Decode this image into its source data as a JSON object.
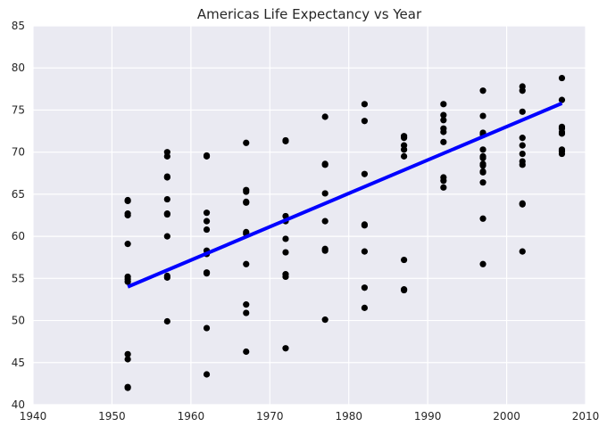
{
  "chart_data": {
    "type": "scatter",
    "title": "Americas Life Expectancy vs Year",
    "xlabel": "",
    "ylabel": "",
    "xlim": [
      1940,
      2010
    ],
    "ylim": [
      40,
      85
    ],
    "grid": true,
    "x_ticks": [
      1940,
      1950,
      1960,
      1970,
      1980,
      1990,
      2000,
      2010
    ],
    "y_ticks": [
      40,
      45,
      50,
      55,
      60,
      65,
      70,
      75,
      80,
      85
    ],
    "x_tick_labels": [
      "1940",
      "1950",
      "1960",
      "1970",
      "1980",
      "1990",
      "2000",
      "2010"
    ],
    "y_tick_labels": [
      "40",
      "45",
      "50",
      "55",
      "60",
      "65",
      "70",
      "75",
      "80",
      "85"
    ],
    "colors": {
      "points": "#000000",
      "fit_line": "#0000ff",
      "plot_bg": "#eaeaf2",
      "grid": "#ffffff"
    },
    "points": [
      {
        "x": 1952,
        "y": 64.3
      },
      {
        "x": 1952,
        "y": 64.2
      },
      {
        "x": 1952,
        "y": 62.7
      },
      {
        "x": 1952,
        "y": 62.5
      },
      {
        "x": 1952,
        "y": 59.1
      },
      {
        "x": 1952,
        "y": 55.2
      },
      {
        "x": 1952,
        "y": 54.9
      },
      {
        "x": 1952,
        "y": 54.6
      },
      {
        "x": 1952,
        "y": 46.0
      },
      {
        "x": 1952,
        "y": 45.4
      },
      {
        "x": 1952,
        "y": 42.1
      },
      {
        "x": 1952,
        "y": 42.0
      },
      {
        "x": 1957,
        "y": 70.0
      },
      {
        "x": 1957,
        "y": 69.5
      },
      {
        "x": 1957,
        "y": 67.1
      },
      {
        "x": 1957,
        "y": 67.0
      },
      {
        "x": 1957,
        "y": 64.4
      },
      {
        "x": 1957,
        "y": 62.7
      },
      {
        "x": 1957,
        "y": 62.6
      },
      {
        "x": 1957,
        "y": 60.0
      },
      {
        "x": 1957,
        "y": 55.3
      },
      {
        "x": 1957,
        "y": 55.1
      },
      {
        "x": 1957,
        "y": 49.9
      },
      {
        "x": 1962,
        "y": 69.6
      },
      {
        "x": 1962,
        "y": 69.5
      },
      {
        "x": 1962,
        "y": 62.8
      },
      {
        "x": 1962,
        "y": 61.8
      },
      {
        "x": 1962,
        "y": 60.8
      },
      {
        "x": 1962,
        "y": 58.3
      },
      {
        "x": 1962,
        "y": 57.9
      },
      {
        "x": 1962,
        "y": 55.7
      },
      {
        "x": 1962,
        "y": 55.6
      },
      {
        "x": 1962,
        "y": 49.1
      },
      {
        "x": 1962,
        "y": 43.6
      },
      {
        "x": 1967,
        "y": 71.1
      },
      {
        "x": 1967,
        "y": 65.5
      },
      {
        "x": 1967,
        "y": 65.3
      },
      {
        "x": 1967,
        "y": 64.1
      },
      {
        "x": 1967,
        "y": 64.0
      },
      {
        "x": 1967,
        "y": 60.5
      },
      {
        "x": 1967,
        "y": 60.3
      },
      {
        "x": 1967,
        "y": 56.7
      },
      {
        "x": 1967,
        "y": 51.9
      },
      {
        "x": 1967,
        "y": 50.9
      },
      {
        "x": 1967,
        "y": 46.3
      },
      {
        "x": 1972,
        "y": 71.4
      },
      {
        "x": 1972,
        "y": 71.3
      },
      {
        "x": 1972,
        "y": 62.4
      },
      {
        "x": 1972,
        "y": 61.8
      },
      {
        "x": 1972,
        "y": 59.7
      },
      {
        "x": 1972,
        "y": 58.1
      },
      {
        "x": 1972,
        "y": 55.5
      },
      {
        "x": 1972,
        "y": 55.2
      },
      {
        "x": 1972,
        "y": 46.7
      },
      {
        "x": 1977,
        "y": 74.2
      },
      {
        "x": 1977,
        "y": 68.6
      },
      {
        "x": 1977,
        "y": 68.5
      },
      {
        "x": 1977,
        "y": 65.1
      },
      {
        "x": 1977,
        "y": 61.8
      },
      {
        "x": 1977,
        "y": 58.5
      },
      {
        "x": 1977,
        "y": 58.3
      },
      {
        "x": 1977,
        "y": 50.1
      },
      {
        "x": 1982,
        "y": 75.7
      },
      {
        "x": 1982,
        "y": 73.7
      },
      {
        "x": 1982,
        "y": 67.4
      },
      {
        "x": 1982,
        "y": 61.4
      },
      {
        "x": 1982,
        "y": 61.3
      },
      {
        "x": 1982,
        "y": 58.2
      },
      {
        "x": 1982,
        "y": 53.9
      },
      {
        "x": 1982,
        "y": 51.5
      },
      {
        "x": 1987,
        "y": 71.9
      },
      {
        "x": 1987,
        "y": 71.7
      },
      {
        "x": 1987,
        "y": 70.8
      },
      {
        "x": 1987,
        "y": 70.3
      },
      {
        "x": 1987,
        "y": 69.5
      },
      {
        "x": 1987,
        "y": 57.2
      },
      {
        "x": 1987,
        "y": 53.7
      },
      {
        "x": 1987,
        "y": 53.6
      },
      {
        "x": 1992,
        "y": 75.7
      },
      {
        "x": 1992,
        "y": 74.4
      },
      {
        "x": 1992,
        "y": 73.8
      },
      {
        "x": 1992,
        "y": 72.8
      },
      {
        "x": 1992,
        "y": 72.4
      },
      {
        "x": 1992,
        "y": 71.2
      },
      {
        "x": 1992,
        "y": 67.0
      },
      {
        "x": 1992,
        "y": 66.6
      },
      {
        "x": 1992,
        "y": 65.8
      },
      {
        "x": 1997,
        "y": 77.3
      },
      {
        "x": 1997,
        "y": 74.3
      },
      {
        "x": 1997,
        "y": 72.3
      },
      {
        "x": 1997,
        "y": 72.1
      },
      {
        "x": 1997,
        "y": 70.3
      },
      {
        "x": 1997,
        "y": 69.5
      },
      {
        "x": 1997,
        "y": 69.3
      },
      {
        "x": 1997,
        "y": 68.6
      },
      {
        "x": 1997,
        "y": 68.4
      },
      {
        "x": 1997,
        "y": 67.7
      },
      {
        "x": 1997,
        "y": 67.6
      },
      {
        "x": 1997,
        "y": 66.4
      },
      {
        "x": 1997,
        "y": 62.1
      },
      {
        "x": 1997,
        "y": 56.7
      },
      {
        "x": 2002,
        "y": 77.8
      },
      {
        "x": 2002,
        "y": 77.3
      },
      {
        "x": 2002,
        "y": 74.8
      },
      {
        "x": 2002,
        "y": 71.7
      },
      {
        "x": 2002,
        "y": 70.8
      },
      {
        "x": 2002,
        "y": 69.8
      },
      {
        "x": 2002,
        "y": 68.9
      },
      {
        "x": 2002,
        "y": 68.5
      },
      {
        "x": 2002,
        "y": 63.9
      },
      {
        "x": 2002,
        "y": 63.8
      },
      {
        "x": 2002,
        "y": 58.2
      },
      {
        "x": 2007,
        "y": 78.8
      },
      {
        "x": 2007,
        "y": 76.2
      },
      {
        "x": 2007,
        "y": 73.0
      },
      {
        "x": 2007,
        "y": 72.8
      },
      {
        "x": 2007,
        "y": 72.4
      },
      {
        "x": 2007,
        "y": 72.2
      },
      {
        "x": 2007,
        "y": 70.3
      },
      {
        "x": 2007,
        "y": 70.1
      },
      {
        "x": 2007,
        "y": 69.8
      }
    ],
    "fit_line": {
      "x": [
        1952,
        2007
      ],
      "y": [
        54.0,
        75.8
      ]
    }
  }
}
